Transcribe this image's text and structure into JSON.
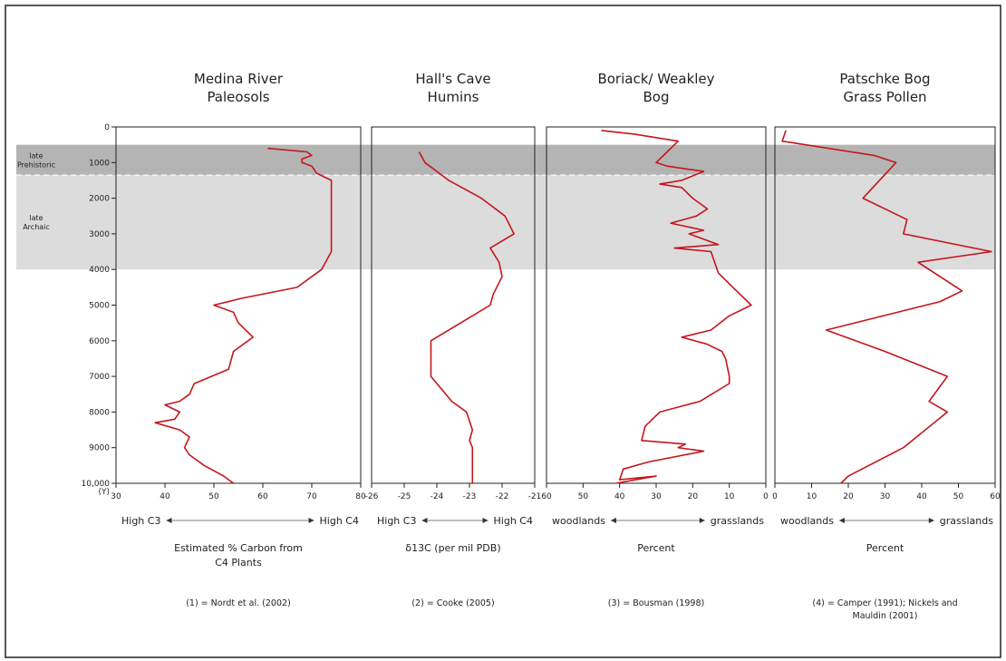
{
  "colors": {
    "line": "#c4161c",
    "band_dark": "#b4b4b4",
    "band_light": "#dcdcdc",
    "axis": "#222222"
  },
  "y_axis": {
    "ticks": [
      "0",
      "1000",
      "2000",
      "3000",
      "4000",
      "5000",
      "6000",
      "7000",
      "8000",
      "9000",
      "10,000"
    ],
    "unit": "(Y)"
  },
  "periods": [
    {
      "label": "Prehistoric",
      "note": "late",
      "from": 500,
      "to": 1350
    },
    {
      "label": "Archaic",
      "note": "late",
      "from": 1350,
      "to": 4000
    }
  ],
  "chart_data": [
    {
      "type": "line",
      "title": "Medina River Paleosols",
      "xlim": [
        30,
        80
      ],
      "x_tick_labels": [
        "30",
        "40",
        "50",
        "60",
        "70",
        "80"
      ],
      "scale_label": {
        "left": "High C3",
        "right": "High C4"
      },
      "xlabel": "Estimated % Carbon from C4 Plants",
      "citation": "(1) = Nordt et al. (2002)",
      "points": [
        [
          61,
          600
        ],
        [
          69,
          700
        ],
        [
          70,
          800
        ],
        [
          68,
          900
        ],
        [
          68,
          1000
        ],
        [
          70,
          1100
        ],
        [
          71,
          1300
        ],
        [
          74,
          1500
        ],
        [
          74,
          2000
        ],
        [
          74,
          2500
        ],
        [
          74,
          3000
        ],
        [
          74,
          3500
        ],
        [
          72,
          4000
        ],
        [
          67,
          4500
        ],
        [
          56,
          4800
        ],
        [
          50,
          5000
        ],
        [
          54,
          5200
        ],
        [
          55,
          5500
        ],
        [
          58,
          5900
        ],
        [
          54,
          6300
        ],
        [
          53,
          6800
        ],
        [
          46,
          7200
        ],
        [
          45,
          7500
        ],
        [
          43,
          7700
        ],
        [
          40,
          7800
        ],
        [
          43,
          8000
        ],
        [
          42,
          8200
        ],
        [
          38,
          8300
        ],
        [
          43,
          8500
        ],
        [
          45,
          8700
        ],
        [
          44,
          9000
        ],
        [
          45,
          9200
        ],
        [
          48,
          9500
        ],
        [
          52,
          9800
        ],
        [
          54,
          10000
        ]
      ]
    },
    {
      "type": "line",
      "title": "Hall's Cave Humins",
      "xlim": [
        -26,
        -20.5
      ],
      "x_tick_labels": [
        "-26",
        "-25",
        "-24",
        "-23",
        "-22",
        "-21"
      ],
      "scale_label": {
        "left": "High C3",
        "right": "High C4"
      },
      "xlabel": "δ13C (per mil PDB)",
      "citation": "(2) = Cooke (2005)",
      "points": [
        [
          -24.4,
          700
        ],
        [
          -24.2,
          1000
        ],
        [
          -23.4,
          1500
        ],
        [
          -22.3,
          2000
        ],
        [
          -21.5,
          2500
        ],
        [
          -21.2,
          3000
        ],
        [
          -22.0,
          3400
        ],
        [
          -21.7,
          3800
        ],
        [
          -21.6,
          4200
        ],
        [
          -21.9,
          4700
        ],
        [
          -22.0,
          5000
        ],
        [
          -24.0,
          6000
        ],
        [
          -24.0,
          7000
        ],
        [
          -23.3,
          7700
        ],
        [
          -22.8,
          8000
        ],
        [
          -22.6,
          8500
        ],
        [
          -22.7,
          8800
        ],
        [
          -22.6,
          9000
        ],
        [
          -22.6,
          9500
        ],
        [
          -22.6,
          10000
        ]
      ]
    },
    {
      "type": "line",
      "title": "Boriack/ Weakley Bog",
      "xlim": [
        60,
        0
      ],
      "x_tick_labels": [
        "60",
        "50",
        "40",
        "30",
        "20",
        "10",
        "0"
      ],
      "scale_label": {
        "left": "woodlands",
        "right": "grasslands"
      },
      "xlabel": "Percent",
      "citation": "(3) = Bousman (1998)",
      "points": [
        [
          45,
          100
        ],
        [
          36,
          200
        ],
        [
          24,
          400
        ],
        [
          27,
          700
        ],
        [
          30,
          1000
        ],
        [
          27,
          1100
        ],
        [
          17,
          1250
        ],
        [
          23,
          1500
        ],
        [
          29,
          1600
        ],
        [
          23,
          1700
        ],
        [
          20,
          2000
        ],
        [
          16,
          2300
        ],
        [
          19,
          2500
        ],
        [
          26,
          2700
        ],
        [
          17,
          2900
        ],
        [
          21,
          3000
        ],
        [
          13,
          3300
        ],
        [
          25,
          3400
        ],
        [
          15,
          3500
        ],
        [
          14,
          3800
        ],
        [
          13,
          4100
        ],
        [
          9,
          4500
        ],
        [
          4,
          5000
        ],
        [
          10,
          5300
        ],
        [
          15,
          5700
        ],
        [
          23,
          5900
        ],
        [
          16,
          6100
        ],
        [
          12,
          6300
        ],
        [
          11,
          6500
        ],
        [
          10,
          7000
        ],
        [
          10,
          7200
        ],
        [
          18,
          7700
        ],
        [
          29,
          8000
        ],
        [
          33,
          8400
        ],
        [
          34,
          8800
        ],
        [
          22,
          8900
        ],
        [
          24,
          9000
        ],
        [
          17,
          9100
        ],
        [
          32,
          9400
        ],
        [
          39,
          9600
        ],
        [
          40,
          9900
        ],
        [
          30,
          9800
        ],
        [
          41,
          10000
        ]
      ]
    },
    {
      "type": "line",
      "title": "Patschke Bog Grass Pollen",
      "xlim": [
        0,
        60
      ],
      "x_tick_labels": [
        "0",
        "10",
        "20",
        "30",
        "40",
        "50",
        "60"
      ],
      "scale_label": {
        "left": "woodlands",
        "right": "grasslands"
      },
      "xlabel": "Percent",
      "citation": "(4) = Camper (1991); Nickels and Mauldin (2001)",
      "points": [
        [
          3,
          100
        ],
        [
          2,
          400
        ],
        [
          27,
          800
        ],
        [
          33,
          1000
        ],
        [
          24,
          2000
        ],
        [
          36,
          2600
        ],
        [
          35,
          3000
        ],
        [
          59,
          3500
        ],
        [
          39,
          3800
        ],
        [
          51,
          4600
        ],
        [
          45,
          4900
        ],
        [
          14,
          5700
        ],
        [
          30,
          6300
        ],
        [
          47,
          7000
        ],
        [
          42,
          7700
        ],
        [
          47,
          8000
        ],
        [
          35,
          9000
        ],
        [
          20,
          9800
        ],
        [
          18,
          10000
        ]
      ]
    }
  ]
}
